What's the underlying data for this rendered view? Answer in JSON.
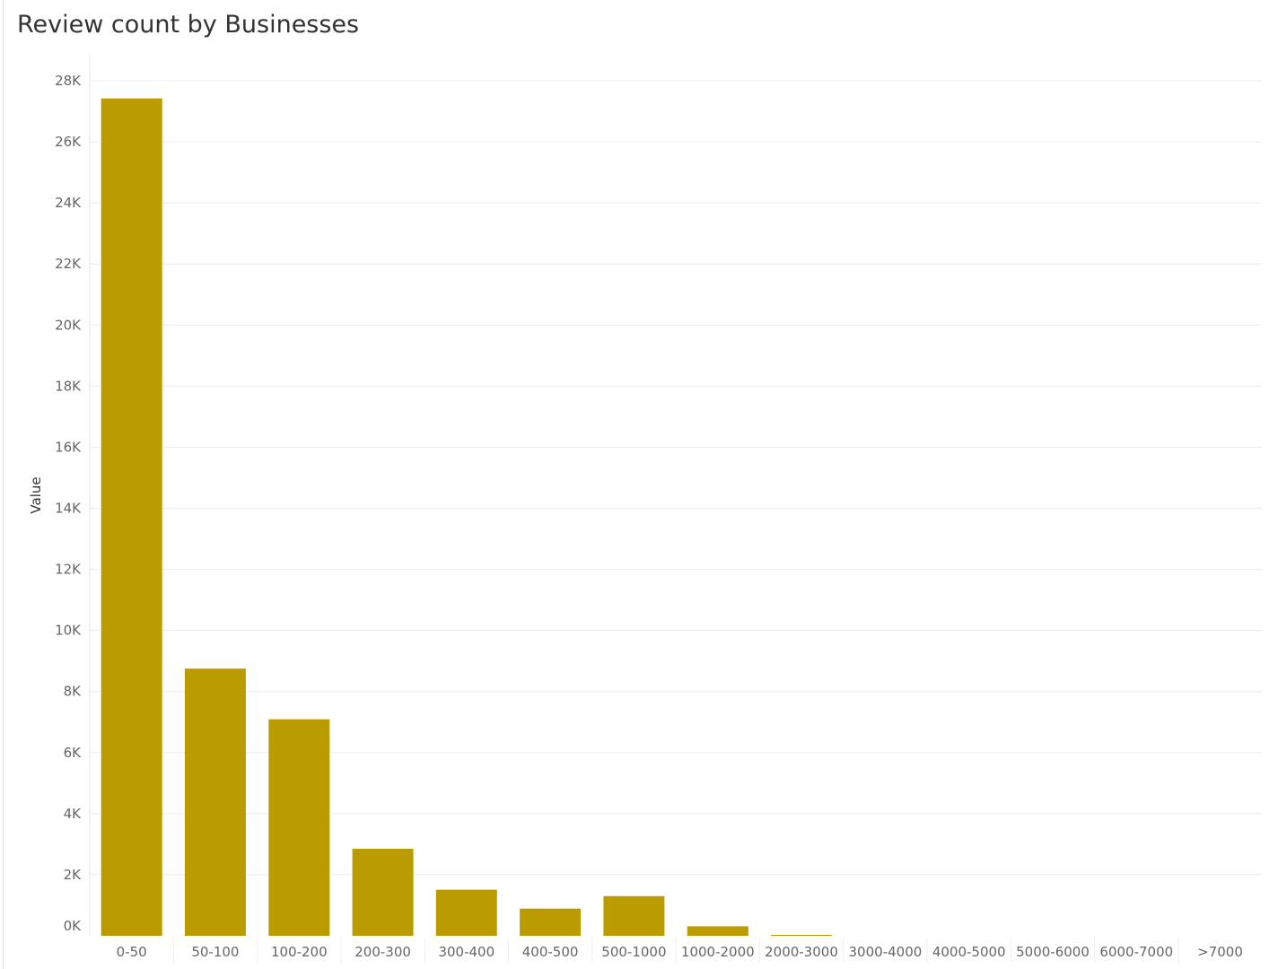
{
  "chart_data": {
    "type": "bar",
    "title": "Review count by Businesses",
    "xlabel": "",
    "ylabel": "Value",
    "categories": [
      "0-50",
      "50-100",
      "100-200",
      "200-300",
      "300-400",
      "400-500",
      "500-1000",
      "1000-2000",
      "2000-3000",
      "3000-4000",
      "4000-5000",
      "5000-6000",
      "6000-7000",
      ">7000"
    ],
    "values": [
      27420,
      8750,
      7090,
      2850,
      1510,
      890,
      1300,
      310,
      30,
      0,
      0,
      0,
      0,
      0
    ],
    "ylim": [
      0,
      28000
    ],
    "yticks": [
      0,
      2000,
      4000,
      6000,
      8000,
      10000,
      12000,
      14000,
      16000,
      18000,
      20000,
      22000,
      24000,
      26000,
      28000
    ],
    "ytick_labels": [
      "0K",
      "2K",
      "4K",
      "6K",
      "8K",
      "10K",
      "12K",
      "14K",
      "16K",
      "18K",
      "20K",
      "22K",
      "24K",
      "26K",
      "28K"
    ],
    "grid": true,
    "bar_color": "#BB9C00",
    "gridline_color": "#ebebeb"
  }
}
